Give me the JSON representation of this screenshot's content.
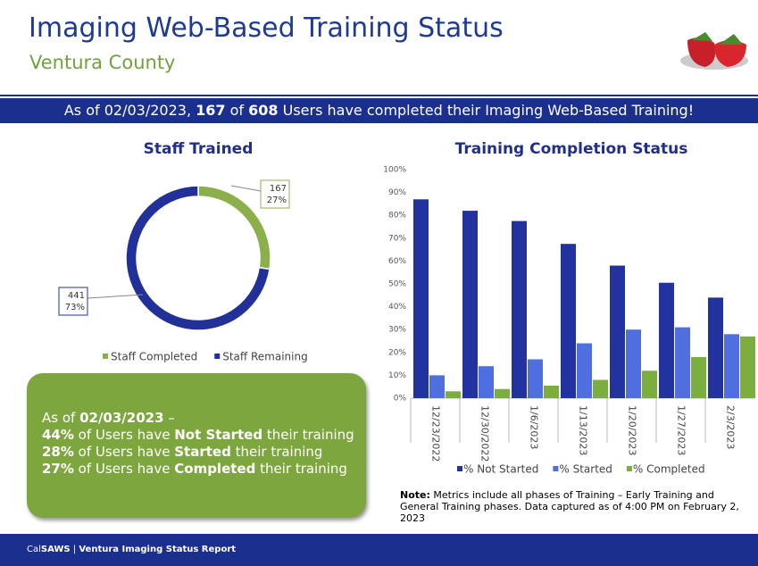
{
  "header": {
    "title": "Imaging Web-Based Training Status",
    "subtitle": "Ventura County"
  },
  "banner": [
    {
      "text": "As of 02/03/2023, "
    },
    {
      "text": "167",
      "bold": true
    },
    {
      "text": " of "
    },
    {
      "text": "608",
      "bold": true
    },
    {
      "text": " Users have completed their Imaging Web-Based Training!"
    }
  ],
  "chart_data": [
    {
      "type": "donut",
      "title": "Staff Trained",
      "categories": [
        "Staff Completed",
        "Staff Remaining"
      ],
      "values": [
        167,
        441
      ],
      "colors": [
        "#8bb04b",
        "#22309a"
      ],
      "percentages": [
        27,
        73
      ],
      "percentage_labels": [
        "27%",
        "73%"
      ]
    },
    {
      "type": "bar",
      "title": "Training Completion Status",
      "categories": [
        "12/23/2022",
        "12/30/2022",
        "1/6/2023",
        "1/13/2023",
        "1/20/2023",
        "1/27/2023",
        "2/3/2023"
      ],
      "series": [
        {
          "name": "% Not Started",
          "color": "#22329e",
          "values": [
            87,
            82,
            77.5,
            67.5,
            58,
            50.5,
            44
          ]
        },
        {
          "name": "% Started",
          "color": "#4f6fe0",
          "values": [
            10,
            14,
            17,
            24,
            30,
            31,
            28
          ]
        },
        {
          "name": "% Completed",
          "color": "#7cae3f",
          "values": [
            3,
            4,
            5.5,
            8,
            12,
            18,
            27
          ]
        }
      ],
      "ylim": [
        0,
        100
      ],
      "yticks": [
        {
          "value": 0,
          "label": "0%"
        },
        {
          "value": 10,
          "label": "10%"
        },
        {
          "value": 20,
          "label": "20%"
        },
        {
          "value": 30,
          "label": "30%"
        },
        {
          "value": 40,
          "label": "40%"
        },
        {
          "value": 50,
          "label": "50%"
        },
        {
          "value": 60,
          "label": "60%"
        },
        {
          "value": 70,
          "label": "70%"
        },
        {
          "value": 80,
          "label": "80%"
        },
        {
          "value": 90,
          "label": "90%"
        },
        {
          "value": 100,
          "label": "100%"
        }
      ],
      "legend": "bottom"
    }
  ],
  "summary": [
    [
      {
        "text": "As of "
      },
      {
        "text": "02/03/2023",
        "bold": true
      },
      {
        "text": " –"
      }
    ],
    [
      {
        "text": "44%",
        "bold": true
      },
      {
        "text": " of Users have "
      },
      {
        "text": "Not Started",
        "bold": true
      },
      {
        "text": " their training"
      }
    ],
    [
      {
        "text": "28%",
        "bold": true
      },
      {
        "text": " of Users have "
      },
      {
        "text": "Started",
        "bold": true
      },
      {
        "text": " their training"
      }
    ],
    [
      {
        "text": "27%",
        "bold": true
      },
      {
        "text": " of Users have "
      },
      {
        "text": "Completed",
        "bold": true
      },
      {
        "text": " their training"
      }
    ]
  ],
  "note": [
    {
      "text": "Note:",
      "bold": true
    },
    {
      "text": " Metrics include all phases of Training – Early Training and General Training phases. Data captured as of 4:00 PM on February 2, 2023"
    }
  ],
  "footer": [
    {
      "text": "Cal"
    },
    {
      "text": "SAWS",
      "bold": true
    },
    {
      "text": " | "
    },
    {
      "text": "Ventura Imaging Status Report",
      "bold": true
    }
  ]
}
